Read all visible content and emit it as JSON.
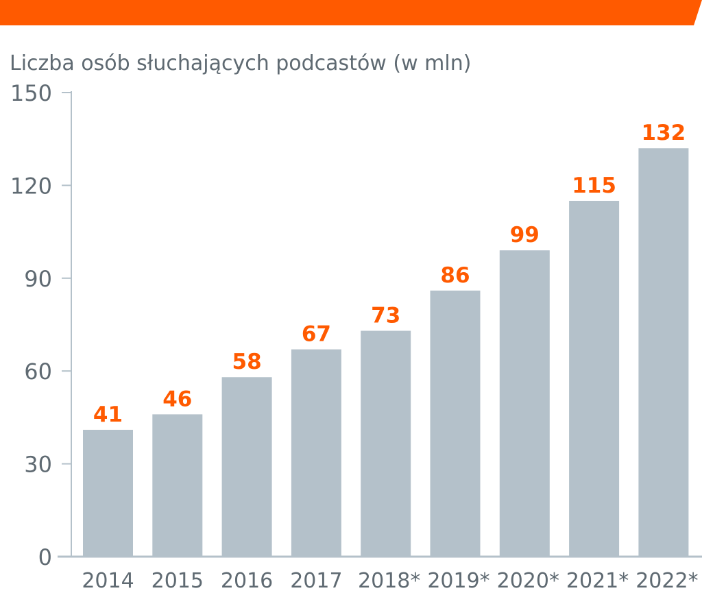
{
  "chart_data": {
    "type": "bar",
    "title": "Liczba osób słuchających podcastów (w mln)",
    "categories": [
      "2014",
      "2015",
      "2016",
      "2017",
      "2018*",
      "2019*",
      "2020*",
      "2021*",
      "2022*"
    ],
    "values": [
      41,
      46,
      58,
      67,
      73,
      86,
      99,
      115,
      132
    ],
    "ylim": [
      0,
      150
    ],
    "yticks": [
      0,
      30,
      60,
      90,
      120,
      150
    ],
    "xlabel": "",
    "ylabel": "",
    "grid": false,
    "colors": {
      "bar": "#b4c1ca",
      "value_label": "#ff5a00",
      "header": "#ff5a00",
      "axis": "#b4c1ca",
      "text": "#5f6a72"
    }
  }
}
